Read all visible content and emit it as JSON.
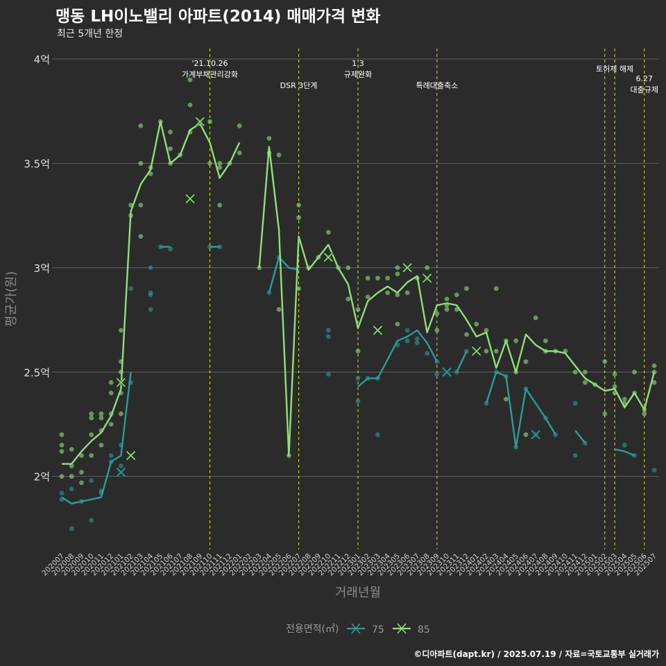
{
  "header": {
    "title": "맹동 LH이노밸리 아파트(2014) 매매가격 변화",
    "subtitle": "최근 5개년 한정"
  },
  "caption": "©디아파트(dapt.kr) / 2025.07.19 / 자료=국토교통부 실거래가",
  "colors": {
    "background": "#2b2b2b",
    "grid": "#5a5a5a",
    "s75": "#2a9d9a",
    "s85": "#8fe07a",
    "vline": "#e8e400",
    "text": "#e0e0e0"
  },
  "chart_data": {
    "type": "line",
    "xlabel": "거래년월",
    "ylabel": "평균가(원)",
    "ylim": [
      1.65,
      4.05
    ],
    "yticks": [
      2,
      2.5,
      3,
      3.5,
      4
    ],
    "ytick_labels": [
      "2억",
      "2.5억",
      "3억",
      "3.5억",
      "4억"
    ],
    "x": [
      "202007",
      "202008",
      "202009",
      "202010",
      "202011",
      "202012",
      "202101",
      "202102",
      "202103",
      "202104",
      "202105",
      "202106",
      "202107",
      "202108",
      "202109",
      "202110",
      "202111",
      "202112",
      "202201",
      "202202",
      "202203",
      "202204",
      "202205",
      "202206",
      "202207",
      "202208",
      "202209",
      "202210",
      "202211",
      "202212",
      "202301",
      "202302",
      "202303",
      "202304",
      "202305",
      "202306",
      "202307",
      "202308",
      "202309",
      "202310",
      "202311",
      "202312",
      "202401",
      "202402",
      "202403",
      "202404",
      "202405",
      "202406",
      "202407",
      "202408",
      "202409",
      "202410",
      "202411",
      "202412",
      "202501",
      "202502",
      "202503",
      "202504",
      "202505",
      "202506",
      "202507"
    ],
    "legend": {
      "title": "전용면적(㎡)",
      "position": "bottom"
    },
    "series": [
      {
        "name": "75",
        "color": "#2a9d9a",
        "values": [
          1.9,
          1.87,
          1.88,
          1.89,
          1.9,
          2.07,
          2.1,
          2.5,
          null,
          null,
          3.1,
          3.1,
          null,
          null,
          null,
          3.1,
          3.1,
          null,
          null,
          null,
          null,
          2.88,
          3.05,
          3.0,
          2.99,
          null,
          null,
          3.05,
          null,
          null,
          2.43,
          2.47,
          2.47,
          2.56,
          2.65,
          2.67,
          2.7,
          2.64,
          2.55,
          null,
          2.5,
          2.6,
          null,
          2.35,
          2.5,
          2.48,
          2.14,
          2.42,
          2.35,
          2.28,
          2.2,
          null,
          2.22,
          2.16,
          null,
          null,
          2.13,
          2.12,
          2.1,
          null,
          2.03
        ],
        "markers": [
          [
            6,
            2.02
          ],
          [
            39,
            2.5
          ],
          [
            48,
            2.2
          ]
        ]
      },
      {
        "name": "85",
        "color": "#8fe07a",
        "values": [
          2.06,
          2.06,
          2.12,
          2.17,
          2.21,
          2.29,
          2.42,
          3.27,
          3.4,
          3.47,
          3.7,
          3.5,
          3.54,
          3.66,
          3.69,
          3.6,
          3.43,
          3.5,
          3.6,
          null,
          3.0,
          3.58,
          3.18,
          2.1,
          3.15,
          2.99,
          3.05,
          3.11,
          3.0,
          2.92,
          2.71,
          2.84,
          2.88,
          2.91,
          2.88,
          2.93,
          2.96,
          2.69,
          2.82,
          2.83,
          2.82,
          2.75,
          2.67,
          2.69,
          2.52,
          2.65,
          2.5,
          2.68,
          2.63,
          2.6,
          2.6,
          2.59,
          2.53,
          2.47,
          2.44,
          2.41,
          2.42,
          2.33,
          2.4,
          2.32,
          2.5
        ],
        "markers": [
          [
            6,
            2.45
          ],
          [
            7,
            2.1
          ],
          [
            13,
            3.33
          ],
          [
            14,
            3.7
          ],
          [
            27,
            3.05
          ],
          [
            32,
            2.7
          ],
          [
            35,
            3.0
          ],
          [
            37,
            2.95
          ],
          [
            42,
            2.6
          ]
        ]
      }
    ],
    "scatter": {
      "75": [
        [
          0,
          1.92
        ],
        [
          0,
          1.89
        ],
        [
          1,
          1.75
        ],
        [
          1,
          1.94
        ],
        [
          2,
          1.88
        ],
        [
          3,
          1.79
        ],
        [
          3,
          1.98
        ],
        [
          4,
          1.92
        ],
        [
          4,
          1.93
        ],
        [
          5,
          2.1
        ],
        [
          5,
          2.07
        ],
        [
          6,
          2.15
        ],
        [
          6,
          2.05
        ],
        [
          7,
          2.45
        ],
        [
          7,
          2.9
        ],
        [
          9,
          2.8
        ],
        [
          9,
          2.87
        ],
        [
          9,
          2.88
        ],
        [
          9,
          3.0
        ],
        [
          10,
          3.1
        ],
        [
          11,
          3.09
        ],
        [
          15,
          3.1
        ],
        [
          16,
          3.1
        ],
        [
          21,
          2.88
        ],
        [
          22,
          3.05
        ],
        [
          27,
          2.7
        ],
        [
          27,
          2.67
        ],
        [
          27,
          2.49
        ],
        [
          30,
          2.47
        ],
        [
          30,
          2.36
        ],
        [
          31,
          2.47
        ],
        [
          32,
          2.47
        ],
        [
          32,
          2.2
        ],
        [
          34,
          2.63
        ],
        [
          35,
          2.7
        ],
        [
          35,
          2.65
        ],
        [
          36,
          2.64
        ],
        [
          36,
          2.66
        ],
        [
          37,
          2.59
        ],
        [
          38,
          2.55
        ],
        [
          38,
          2.49
        ],
        [
          40,
          2.5
        ],
        [
          41,
          2.6
        ],
        [
          43,
          2.35
        ],
        [
          44,
          2.5
        ],
        [
          45,
          2.48
        ],
        [
          46,
          2.14
        ],
        [
          47,
          2.42
        ],
        [
          48,
          2.2
        ],
        [
          49,
          2.28
        ],
        [
          50,
          2.2
        ],
        [
          52,
          2.1
        ],
        [
          52,
          2.35
        ],
        [
          53,
          2.16
        ],
        [
          57,
          2.15
        ],
        [
          58,
          2.1
        ],
        [
          60,
          2.03
        ]
      ],
      "85": [
        [
          0,
          2.2
        ],
        [
          0,
          2.15
        ],
        [
          0,
          2.12
        ],
        [
          0,
          2.0
        ],
        [
          1,
          2.13
        ],
        [
          1,
          2.05
        ],
        [
          1,
          2.0
        ],
        [
          2,
          2.1
        ],
        [
          2,
          2.02
        ],
        [
          2,
          1.97
        ],
        [
          3,
          2.3
        ],
        [
          3,
          2.28
        ],
        [
          3,
          2.2
        ],
        [
          3,
          2.1
        ],
        [
          4,
          2.3
        ],
        [
          4,
          2.28
        ],
        [
          4,
          2.22
        ],
        [
          4,
          2.15
        ],
        [
          5,
          2.45
        ],
        [
          5,
          2.4
        ],
        [
          5,
          2.3
        ],
        [
          5,
          2.25
        ],
        [
          6,
          2.7
        ],
        [
          6,
          2.55
        ],
        [
          6,
          2.5
        ],
        [
          6,
          2.45
        ],
        [
          6,
          2.4
        ],
        [
          6,
          2.3
        ],
        [
          7,
          3.3
        ],
        [
          7,
          3.25
        ],
        [
          8,
          3.68
        ],
        [
          8,
          3.5
        ],
        [
          8,
          3.3
        ],
        [
          8,
          3.15
        ],
        [
          9,
          3.48
        ],
        [
          9,
          3.45
        ],
        [
          10,
          3.7
        ],
        [
          11,
          3.65
        ],
        [
          11,
          3.57
        ],
        [
          11,
          3.5
        ],
        [
          12,
          3.54
        ],
        [
          13,
          3.9
        ],
        [
          13,
          3.78
        ],
        [
          13,
          3.65
        ],
        [
          14,
          3.7
        ],
        [
          15,
          3.7
        ],
        [
          15,
          3.5
        ],
        [
          16,
          3.5
        ],
        [
          16,
          3.48
        ],
        [
          16,
          3.3
        ],
        [
          17,
          3.5
        ],
        [
          18,
          3.68
        ],
        [
          18,
          3.55
        ],
        [
          20,
          3.0
        ],
        [
          21,
          3.62
        ],
        [
          21,
          3.55
        ],
        [
          22,
          3.54
        ],
        [
          22,
          2.8
        ],
        [
          23,
          2.1
        ],
        [
          24,
          3.3
        ],
        [
          24,
          3.24
        ],
        [
          24,
          2.9
        ],
        [
          25,
          3.0
        ],
        [
          26,
          3.05
        ],
        [
          27,
          3.17
        ],
        [
          27,
          3.05
        ],
        [
          28,
          3.0
        ],
        [
          29,
          3.0
        ],
        [
          29,
          2.85
        ],
        [
          30,
          2.8
        ],
        [
          30,
          2.6
        ],
        [
          31,
          2.95
        ],
        [
          31,
          2.86
        ],
        [
          32,
          2.95
        ],
        [
          33,
          2.95
        ],
        [
          33,
          2.88
        ],
        [
          34,
          3.0
        ],
        [
          34,
          2.97
        ],
        [
          34,
          2.87
        ],
        [
          34,
          2.73
        ],
        [
          35,
          2.88
        ],
        [
          36,
          2.95
        ],
        [
          37,
          3.0
        ],
        [
          37,
          2.95
        ],
        [
          38,
          2.78
        ],
        [
          38,
          2.7
        ],
        [
          39,
          2.85
        ],
        [
          39,
          2.82
        ],
        [
          39,
          2.8
        ],
        [
          40,
          2.87
        ],
        [
          40,
          2.8
        ],
        [
          41,
          2.9
        ],
        [
          41,
          2.68
        ],
        [
          42,
          2.73
        ],
        [
          43,
          2.7
        ],
        [
          43,
          2.6
        ],
        [
          44,
          2.9
        ],
        [
          44,
          2.6
        ],
        [
          45,
          2.65
        ],
        [
          45,
          2.37
        ],
        [
          46,
          2.65
        ],
        [
          46,
          2.5
        ],
        [
          47,
          2.55
        ],
        [
          47,
          2.2
        ],
        [
          48,
          2.76
        ],
        [
          49,
          2.65
        ],
        [
          49,
          2.6
        ],
        [
          50,
          2.6
        ],
        [
          51,
          2.6
        ],
        [
          52,
          2.5
        ],
        [
          53,
          2.5
        ],
        [
          53,
          2.45
        ],
        [
          54,
          2.44
        ],
        [
          55,
          2.55
        ],
        [
          55,
          2.3
        ],
        [
          56,
          2.49
        ],
        [
          56,
          2.43
        ],
        [
          56,
          2.4
        ],
        [
          57,
          2.37
        ],
        [
          57,
          2.35
        ],
        [
          58,
          2.5
        ],
        [
          58,
          2.4
        ],
        [
          59,
          2.3
        ],
        [
          59,
          2.32
        ],
        [
          60,
          2.53
        ],
        [
          60,
          2.5
        ],
        [
          60,
          2.45
        ]
      ]
    },
    "annotations": [
      {
        "x": 15,
        "lines": [
          "'21.10.26",
          "가계부채관리강화"
        ],
        "row": 0
      },
      {
        "x": 24,
        "lines": [
          "DSR 3단계"
        ],
        "row": 2
      },
      {
        "x": 30,
        "lines": [
          "1.3",
          "규제완화"
        ],
        "row": 0
      },
      {
        "x": 38,
        "lines": [
          "특례대출축소"
        ],
        "row": 2
      },
      {
        "x": 55,
        "lines": [],
        "row": 0
      },
      {
        "x": 56,
        "lines": [
          "토허제 해제"
        ],
        "row": 1
      },
      {
        "x": 59,
        "lines": [
          "6.27",
          "대출규제"
        ],
        "row": 3
      }
    ]
  }
}
